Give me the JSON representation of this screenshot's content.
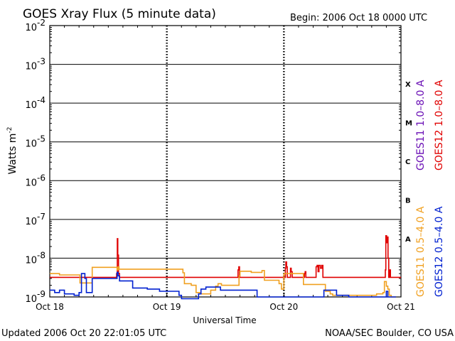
{
  "header": {
    "title": "GOES Xray Flux (5 minute data)",
    "begin": "Begin:  2006 Oct 18 0000 UTC"
  },
  "footer": {
    "updated": "Updated 2006 Oct 20 22:01:05 UTC",
    "credit": "NOAA/SEC Boulder, CO USA"
  },
  "chart_data": {
    "type": "line",
    "title": "GOES Xray Flux (5 minute data)",
    "xlabel": "Universal Time",
    "ylabel": "Watts m⁻²",
    "ylabel_base": "Watts m",
    "ylabel_exp": "-2",
    "yscale": "log",
    "ylim": [
      1e-09,
      0.01
    ],
    "xlim": [
      0,
      72
    ],
    "x_unit": "hours since 2006 Oct 18 0000 UTC",
    "x_ticks": [
      {
        "x": 0,
        "label": "Oct 18"
      },
      {
        "x": 24,
        "label": "Oct 19"
      },
      {
        "x": 48,
        "label": "Oct 20"
      },
      {
        "x": 72,
        "label": "Oct 21"
      }
    ],
    "y_ticks": [
      {
        "exp": -9,
        "label": "10",
        "sup": "-9"
      },
      {
        "exp": -8,
        "label": "10",
        "sup": "-8"
      },
      {
        "exp": -7,
        "label": "10",
        "sup": "-7"
      },
      {
        "exp": -6,
        "label": "10",
        "sup": "-6"
      },
      {
        "exp": -5,
        "label": "10",
        "sup": "-5"
      },
      {
        "exp": -4,
        "label": "10",
        "sup": "-4"
      },
      {
        "exp": -3,
        "label": "10",
        "sup": "-3"
      },
      {
        "exp": -2,
        "label": "10",
        "sup": "-2"
      }
    ],
    "flare_classes": [
      {
        "label": "X",
        "exp": -3.5
      },
      {
        "label": "M",
        "exp": -4.5
      },
      {
        "label": "C",
        "exp": -5.5
      },
      {
        "label": "B",
        "exp": -6.5
      },
      {
        "label": "A",
        "exp": -7.5
      }
    ],
    "grid_horizontal_exps": [
      -8,
      -7,
      -6,
      -5,
      -4,
      -3
    ],
    "grid": true,
    "legend_placement": "right (vertical)",
    "legend": [
      {
        "label": "GOES11 1.0–8.0 A",
        "color": "#6a0fb5"
      },
      {
        "label": "GOES12 1.0–8.0 A",
        "color": "#e00000"
      },
      {
        "label": "GOES11 0.5–4.0 A",
        "color": "#f0a020"
      },
      {
        "label": "GOES12 0.5–4.0 A",
        "color": "#0020d0"
      }
    ],
    "series": [
      {
        "name": "GOES12 1.0–8.0 A",
        "color": "#e00000",
        "x": [
          0,
          13.5,
          13.7,
          13.85,
          13.95,
          14.1,
          14.3,
          24,
          38.5,
          38.6,
          38.75,
          38.9,
          48,
          48.3,
          48.4,
          48.55,
          48.7,
          49.2,
          49.35,
          49.5,
          49.7,
          52,
          52.2,
          52.35,
          52.5,
          54.5,
          54.6,
          54.8,
          55.0,
          55.2,
          55.5,
          55.8,
          56.0,
          64,
          68.5,
          68.8,
          68.9,
          69.05,
          69.2,
          69.35,
          69.5,
          69.7,
          69.85,
          72
        ],
        "y": [
          3.2e-09,
          3.2e-09,
          4e-09,
          3.2e-08,
          1.2e-08,
          4e-09,
          3.2e-09,
          3.2e-09,
          3.2e-09,
          5e-09,
          6e-09,
          3.2e-09,
          3.2e-09,
          5.5e-09,
          8e-09,
          6e-09,
          3.2e-09,
          3.2e-09,
          5.5e-09,
          4.5e-09,
          3.2e-09,
          3.2e-09,
          4e-09,
          4.5e-09,
          3.2e-09,
          3.2e-09,
          6e-09,
          6.5e-09,
          4.5e-09,
          6.5e-09,
          5.5e-09,
          6.5e-09,
          3.2e-09,
          3.2e-09,
          3.2e-09,
          5e-09,
          3.8e-08,
          2.5e-08,
          3.5e-08,
          1e-08,
          3.2e-09,
          5e-09,
          3.2e-09,
          3.2e-09
        ]
      },
      {
        "name": "GOES11 0.5–4.0 A",
        "color": "#f0a020",
        "x": [
          0,
          2,
          5.8,
          6.2,
          8.5,
          8.7,
          13.5,
          13.8,
          14.0,
          14.2,
          16,
          27,
          27.3,
          27.6,
          29,
          30,
          31,
          33,
          34,
          34.5,
          35.2,
          38.5,
          38.8,
          39,
          41,
          41.3,
          42,
          43,
          43.5,
          44,
          46.5,
          47,
          47.5,
          48,
          51,
          52,
          56,
          56.5,
          57.5,
          58,
          60,
          62,
          63,
          67,
          68.3,
          68.6,
          69,
          69.3,
          69.6,
          70,
          71
        ],
        "y": [
          4e-09,
          3.7e-09,
          3.7e-09,
          2.3e-09,
          2.3e-09,
          5.8e-09,
          5.8e-09,
          5e-09,
          6e-09,
          5.2e-09,
          5.2e-09,
          5.2e-09,
          4.2e-09,
          2.2e-09,
          2e-09,
          1.3e-09,
          1.2e-09,
          1.5e-09,
          1.9e-09,
          2.2e-09,
          2e-09,
          2e-09,
          3.5e-09,
          4.6e-09,
          4.6e-09,
          4.3e-09,
          4.3e-09,
          4.3e-09,
          4.8e-09,
          2.7e-09,
          2.7e-09,
          2.2e-09,
          1.6e-09,
          4e-09,
          4e-09,
          2.1e-09,
          2.1e-09,
          1.4e-09,
          1.2e-09,
          1.1e-09,
          1.1e-09,
          1.1e-09,
          1.1e-09,
          1.2e-09,
          1.3e-09,
          2.5e-09,
          1.9e-09,
          1.6e-09,
          1.1e-09,
          1e-09,
          1e-09
        ]
      },
      {
        "name": "GOES12 0.5–4.0 A",
        "color": "#0020d0",
        "x": [
          0,
          1,
          2,
          3,
          4,
          5,
          6,
          6.5,
          7.2,
          7.5,
          8.5,
          8.7,
          13.6,
          13.8,
          14.0,
          14.3,
          17,
          20,
          21,
          22.5,
          24,
          26.5,
          27,
          29,
          30.5,
          31,
          32,
          34.5,
          35,
          42,
          42.5,
          48,
          54,
          56,
          56.2,
          58.5,
          58.8,
          61,
          61.3,
          64,
          68,
          69,
          69.3,
          70,
          71
        ],
        "y": [
          1.5e-09,
          1.3e-09,
          1.5e-09,
          1.2e-09,
          1.2e-09,
          1.1e-09,
          1.3e-09,
          4e-09,
          3e-09,
          1.3e-09,
          1.3e-09,
          3e-09,
          3e-09,
          4.3e-09,
          3.5e-09,
          2.6e-09,
          1.7e-09,
          1.6e-09,
          1.6e-09,
          1.4e-09,
          1.4e-09,
          1.1e-09,
          9e-10,
          9e-10,
          1.2e-09,
          1.6e-09,
          1.8e-09,
          1.8e-09,
          1.5e-09,
          1.5e-09,
          1e-09,
          1e-09,
          1e-09,
          1e-09,
          1.5e-09,
          1.5e-09,
          1.1e-09,
          1.1e-09,
          1e-09,
          1e-09,
          1e-09,
          1.4e-09,
          1e-09,
          1e-09,
          1e-09
        ]
      }
    ]
  }
}
